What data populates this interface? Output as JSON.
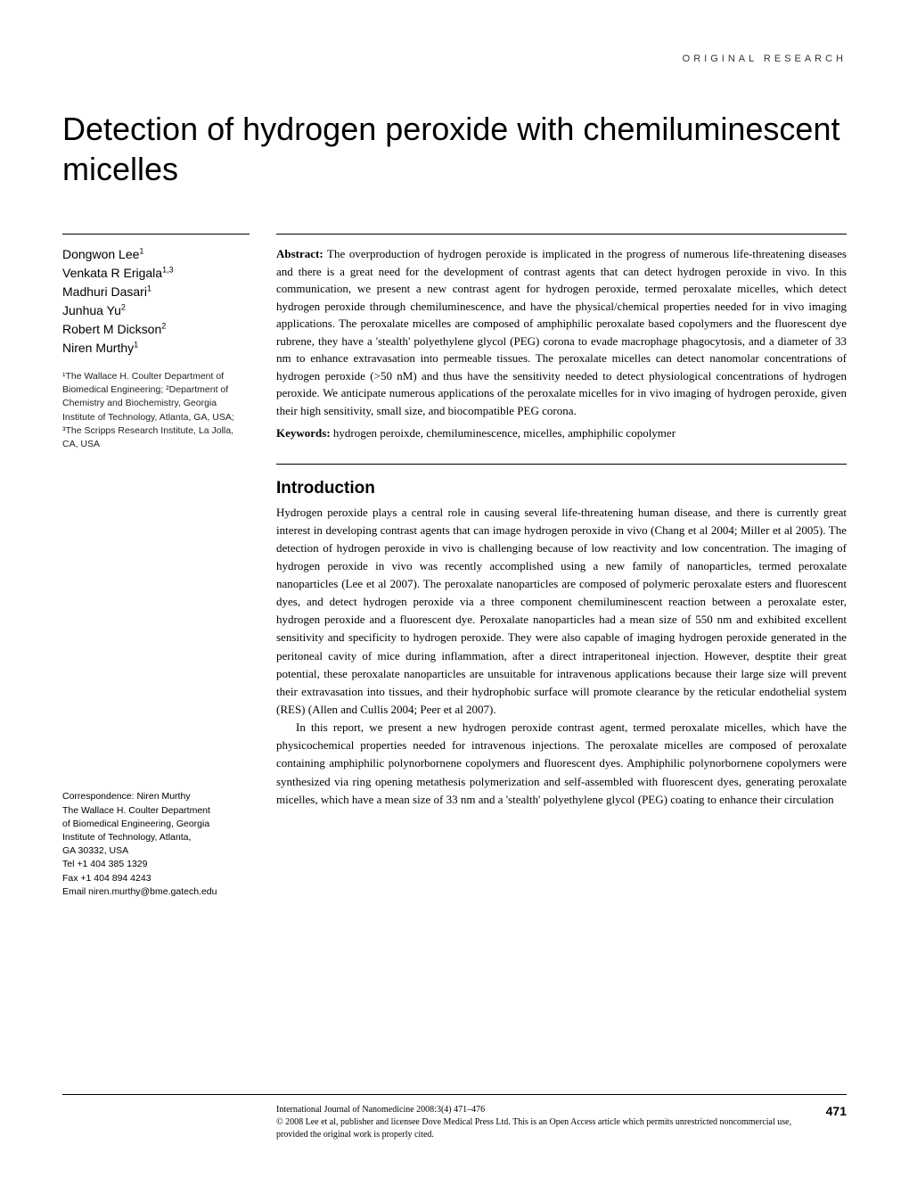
{
  "header_label": "ORIGINAL RESEARCH",
  "title": "Detection of hydrogen peroxide with chemiluminescent micelles",
  "authors": [
    {
      "name": "Dongwon Lee",
      "sup": "1"
    },
    {
      "name": "Venkata R Erigala",
      "sup": "1,3"
    },
    {
      "name": "Madhuri Dasari",
      "sup": "1"
    },
    {
      "name": "Junhua Yu",
      "sup": "2"
    },
    {
      "name": "Robert M Dickson",
      "sup": "2"
    },
    {
      "name": "Niren Murthy",
      "sup": "1"
    }
  ],
  "affiliations": "¹The Wallace H. Coulter Department of Biomedical Engineering; ²Department of Chemistry and Biochemistry, Georgia Institute of Technology, Atlanta, GA, USA; ³The Scripps Research Institute, La Jolla, CA, USA",
  "abstract_label": "Abstract:",
  "abstract_text": " The overproduction of hydrogen peroxide is implicated in the progress of numerous life-threatening diseases and there is a great need for the development of contrast agents that can detect hydrogen peroxide in vivo. In this communication, we present a new contrast agent for hydrogen peroxide, termed peroxalate micelles, which detect hydrogen peroxide through chemiluminescence, and have the physical/chemical properties needed for in vivo imaging applications. The peroxalate micelles are composed of amphiphilic peroxalate based copolymers and the fluorescent dye rubrene, they have a 'stealth' polyethylene glycol (PEG) corona to evade macrophage phagocytosis, and a diameter of 33 nm to enhance extravasation into permeable tissues. The peroxalate micelles can detect nanomolar concentrations of hydrogen peroxide (>50 nM) and thus have the sensitivity needed to detect physiological concentrations of hydrogen peroxide. We anticipate numerous applications of the peroxalate micelles for in vivo imaging of hydrogen peroxide, given their high sensitivity, small size, and biocompatible PEG corona.",
  "keywords_label": "Keywords:",
  "keywords_text": " hydrogen peroixde, chemiluminescence, micelles, amphiphilic copolymer",
  "intro_heading": "Introduction",
  "intro_para1": "Hydrogen peroxide plays a central role in causing several life-threatening human disease, and there is currently great interest in developing contrast agents that can image hydrogen peroxide in vivo (Chang et al 2004; Miller et al 2005). The detection of hydrogen peroxide in vivo is challenging because of low reactivity and low concentration. The imaging of hydrogen peroxide in vivo was recently accomplished using a new family of nanoparticles, termed peroxalate nanoparticles (Lee et al 2007). The peroxalate nanoparticles are composed of polymeric peroxalate esters and fluorescent dyes, and detect hydrogen peroxide via a three component chemiluminescent reaction between a peroxalate ester, hydrogen peroxide and a fluorescent dye. Peroxalate nanoparticles had a mean size of 550 nm and exhibited excellent sensitivity and specificity to hydrogen peroxide. They were also capable of imaging hydrogen peroxide generated in the peritoneal cavity of mice during inflammation, after a direct intraperitoneal injection. However, desptite their great potential, these peroxalate nanoparticles are unsuitable for intravenous applications because their large size will prevent their extravasation into tissues, and their hydrophobic surface will promote clearance by the reticular endothelial system (RES) (Allen and Cullis 2004; Peer et al 2007).",
  "intro_para2": "In this report, we present a new hydrogen peroxide contrast agent, termed peroxalate micelles, which have the physicochemical properties needed for intravenous injections. The peroxalate micelles are composed of peroxalate containing amphiphilic polynorbornene copolymers and fluorescent dyes. Amphiphilic polynorbornene copolymers were synthesized via ring opening metathesis polymerization and self-assembled with fluorescent dyes, generating peroxalate micelles, which have a mean size of 33 nm and a 'stealth' polyethylene glycol (PEG) coating to enhance their circulation",
  "correspondence": {
    "label": "Correspondence: Niren Murthy",
    "lines": [
      "The Wallace H. Coulter Department",
      "of Biomedical Engineering, Georgia",
      "Institute of Technology, Atlanta,",
      "GA 30332, USA",
      "Tel +1 404 385 1329",
      "Fax +1 404 894 4243",
      "Email niren.murthy@bme.gatech.edu"
    ]
  },
  "footer": {
    "journal": "International Journal of Nanomedicine 2008:3(4) 471–476",
    "copyright": "© 2008 Lee et al, publisher and licensee Dove Medical Press Ltd. This is an Open Access article which permits unrestricted noncommercial use, provided the original work is properly cited.",
    "page": "471"
  }
}
